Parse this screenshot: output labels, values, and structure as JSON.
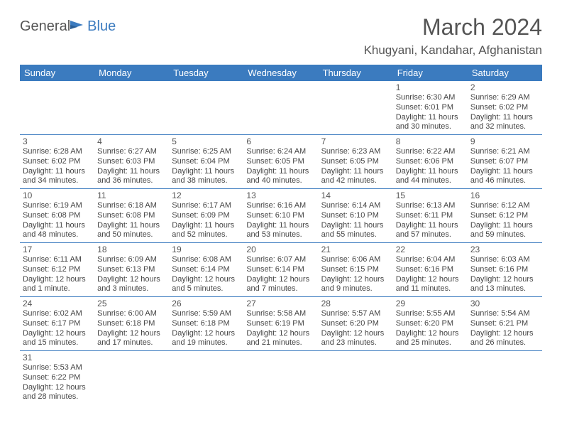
{
  "logo": {
    "general": "General",
    "blue": "Blue"
  },
  "title": "March 2024",
  "location": "Khugyani, Kandahar, Afghanistan",
  "dayHeaders": [
    "Sunday",
    "Monday",
    "Tuesday",
    "Wednesday",
    "Thursday",
    "Friday",
    "Saturday"
  ],
  "colors": {
    "headerBg": "#3b7bbf",
    "headerText": "#ffffff",
    "bodyText": "#444444",
    "titleText": "#555555",
    "rowBorder": "#3b7bbf",
    "background": "#ffffff"
  },
  "weeks": [
    [
      null,
      null,
      null,
      null,
      null,
      {
        "num": "1",
        "sunrise": "Sunrise: 6:30 AM",
        "sunset": "Sunset: 6:01 PM",
        "day1": "Daylight: 11 hours",
        "day2": "and 30 minutes."
      },
      {
        "num": "2",
        "sunrise": "Sunrise: 6:29 AM",
        "sunset": "Sunset: 6:02 PM",
        "day1": "Daylight: 11 hours",
        "day2": "and 32 minutes."
      }
    ],
    [
      {
        "num": "3",
        "sunrise": "Sunrise: 6:28 AM",
        "sunset": "Sunset: 6:02 PM",
        "day1": "Daylight: 11 hours",
        "day2": "and 34 minutes."
      },
      {
        "num": "4",
        "sunrise": "Sunrise: 6:27 AM",
        "sunset": "Sunset: 6:03 PM",
        "day1": "Daylight: 11 hours",
        "day2": "and 36 minutes."
      },
      {
        "num": "5",
        "sunrise": "Sunrise: 6:25 AM",
        "sunset": "Sunset: 6:04 PM",
        "day1": "Daylight: 11 hours",
        "day2": "and 38 minutes."
      },
      {
        "num": "6",
        "sunrise": "Sunrise: 6:24 AM",
        "sunset": "Sunset: 6:05 PM",
        "day1": "Daylight: 11 hours",
        "day2": "and 40 minutes."
      },
      {
        "num": "7",
        "sunrise": "Sunrise: 6:23 AM",
        "sunset": "Sunset: 6:05 PM",
        "day1": "Daylight: 11 hours",
        "day2": "and 42 minutes."
      },
      {
        "num": "8",
        "sunrise": "Sunrise: 6:22 AM",
        "sunset": "Sunset: 6:06 PM",
        "day1": "Daylight: 11 hours",
        "day2": "and 44 minutes."
      },
      {
        "num": "9",
        "sunrise": "Sunrise: 6:21 AM",
        "sunset": "Sunset: 6:07 PM",
        "day1": "Daylight: 11 hours",
        "day2": "and 46 minutes."
      }
    ],
    [
      {
        "num": "10",
        "sunrise": "Sunrise: 6:19 AM",
        "sunset": "Sunset: 6:08 PM",
        "day1": "Daylight: 11 hours",
        "day2": "and 48 minutes."
      },
      {
        "num": "11",
        "sunrise": "Sunrise: 6:18 AM",
        "sunset": "Sunset: 6:08 PM",
        "day1": "Daylight: 11 hours",
        "day2": "and 50 minutes."
      },
      {
        "num": "12",
        "sunrise": "Sunrise: 6:17 AM",
        "sunset": "Sunset: 6:09 PM",
        "day1": "Daylight: 11 hours",
        "day2": "and 52 minutes."
      },
      {
        "num": "13",
        "sunrise": "Sunrise: 6:16 AM",
        "sunset": "Sunset: 6:10 PM",
        "day1": "Daylight: 11 hours",
        "day2": "and 53 minutes."
      },
      {
        "num": "14",
        "sunrise": "Sunrise: 6:14 AM",
        "sunset": "Sunset: 6:10 PM",
        "day1": "Daylight: 11 hours",
        "day2": "and 55 minutes."
      },
      {
        "num": "15",
        "sunrise": "Sunrise: 6:13 AM",
        "sunset": "Sunset: 6:11 PM",
        "day1": "Daylight: 11 hours",
        "day2": "and 57 minutes."
      },
      {
        "num": "16",
        "sunrise": "Sunrise: 6:12 AM",
        "sunset": "Sunset: 6:12 PM",
        "day1": "Daylight: 11 hours",
        "day2": "and 59 minutes."
      }
    ],
    [
      {
        "num": "17",
        "sunrise": "Sunrise: 6:11 AM",
        "sunset": "Sunset: 6:12 PM",
        "day1": "Daylight: 12 hours",
        "day2": "and 1 minute."
      },
      {
        "num": "18",
        "sunrise": "Sunrise: 6:09 AM",
        "sunset": "Sunset: 6:13 PM",
        "day1": "Daylight: 12 hours",
        "day2": "and 3 minutes."
      },
      {
        "num": "19",
        "sunrise": "Sunrise: 6:08 AM",
        "sunset": "Sunset: 6:14 PM",
        "day1": "Daylight: 12 hours",
        "day2": "and 5 minutes."
      },
      {
        "num": "20",
        "sunrise": "Sunrise: 6:07 AM",
        "sunset": "Sunset: 6:14 PM",
        "day1": "Daylight: 12 hours",
        "day2": "and 7 minutes."
      },
      {
        "num": "21",
        "sunrise": "Sunrise: 6:06 AM",
        "sunset": "Sunset: 6:15 PM",
        "day1": "Daylight: 12 hours",
        "day2": "and 9 minutes."
      },
      {
        "num": "22",
        "sunrise": "Sunrise: 6:04 AM",
        "sunset": "Sunset: 6:16 PM",
        "day1": "Daylight: 12 hours",
        "day2": "and 11 minutes."
      },
      {
        "num": "23",
        "sunrise": "Sunrise: 6:03 AM",
        "sunset": "Sunset: 6:16 PM",
        "day1": "Daylight: 12 hours",
        "day2": "and 13 minutes."
      }
    ],
    [
      {
        "num": "24",
        "sunrise": "Sunrise: 6:02 AM",
        "sunset": "Sunset: 6:17 PM",
        "day1": "Daylight: 12 hours",
        "day2": "and 15 minutes."
      },
      {
        "num": "25",
        "sunrise": "Sunrise: 6:00 AM",
        "sunset": "Sunset: 6:18 PM",
        "day1": "Daylight: 12 hours",
        "day2": "and 17 minutes."
      },
      {
        "num": "26",
        "sunrise": "Sunrise: 5:59 AM",
        "sunset": "Sunset: 6:18 PM",
        "day1": "Daylight: 12 hours",
        "day2": "and 19 minutes."
      },
      {
        "num": "27",
        "sunrise": "Sunrise: 5:58 AM",
        "sunset": "Sunset: 6:19 PM",
        "day1": "Daylight: 12 hours",
        "day2": "and 21 minutes."
      },
      {
        "num": "28",
        "sunrise": "Sunrise: 5:57 AM",
        "sunset": "Sunset: 6:20 PM",
        "day1": "Daylight: 12 hours",
        "day2": "and 23 minutes."
      },
      {
        "num": "29",
        "sunrise": "Sunrise: 5:55 AM",
        "sunset": "Sunset: 6:20 PM",
        "day1": "Daylight: 12 hours",
        "day2": "and 25 minutes."
      },
      {
        "num": "30",
        "sunrise": "Sunrise: 5:54 AM",
        "sunset": "Sunset: 6:21 PM",
        "day1": "Daylight: 12 hours",
        "day2": "and 26 minutes."
      }
    ],
    [
      {
        "num": "31",
        "sunrise": "Sunrise: 5:53 AM",
        "sunset": "Sunset: 6:22 PM",
        "day1": "Daylight: 12 hours",
        "day2": "and 28 minutes."
      },
      null,
      null,
      null,
      null,
      null,
      null
    ]
  ]
}
